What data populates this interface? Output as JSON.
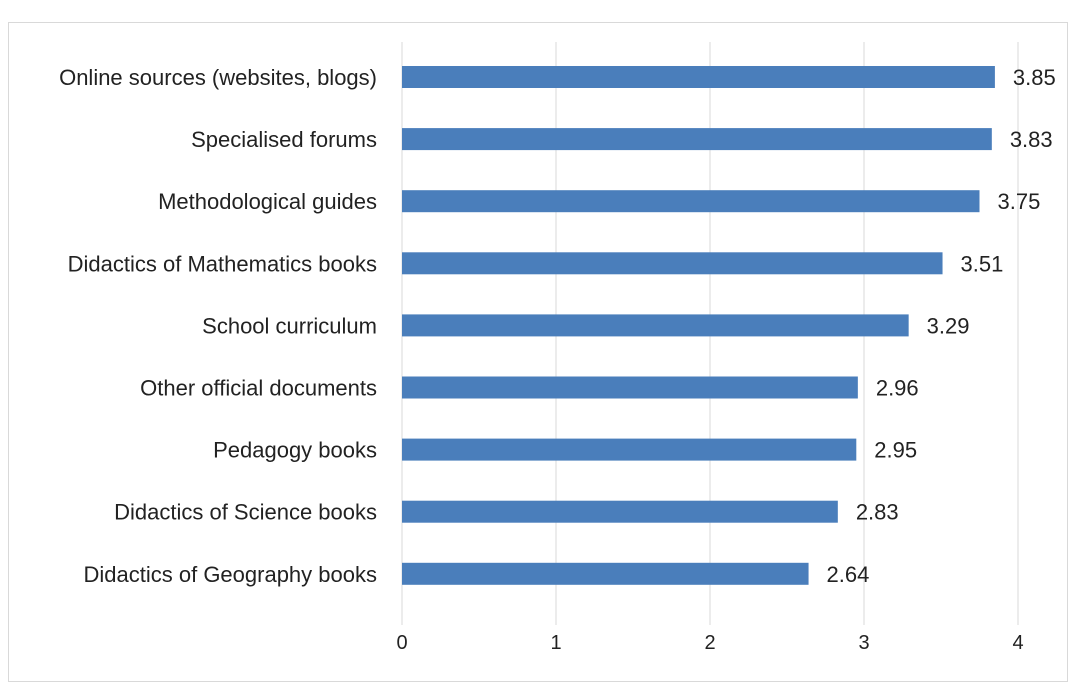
{
  "chart_data": {
    "type": "bar",
    "orientation": "horizontal",
    "categories": [
      "Online sources (websites, blogs)",
      "Specialised forums",
      "Methodological guides",
      "Didactics of Mathematics books",
      "School curriculum",
      "Other official documents",
      "Pedagogy books",
      "Didactics of Science books",
      "Didactics of Geography books"
    ],
    "values": [
      3.85,
      3.83,
      3.75,
      3.51,
      3.29,
      2.96,
      2.95,
      2.83,
      2.64
    ],
    "value_labels": [
      "3.85",
      "3.83",
      "3.75",
      "3.51",
      "3.29",
      "2.96",
      "2.95",
      "2.83",
      "2.64"
    ],
    "xticks": [
      "0",
      "1",
      "2",
      "3",
      "4"
    ],
    "xlim": [
      0,
      4
    ],
    "title": "",
    "xlabel": "",
    "ylabel": "",
    "grid": true,
    "legend": "none",
    "bar_color": "#4a7ebb"
  }
}
